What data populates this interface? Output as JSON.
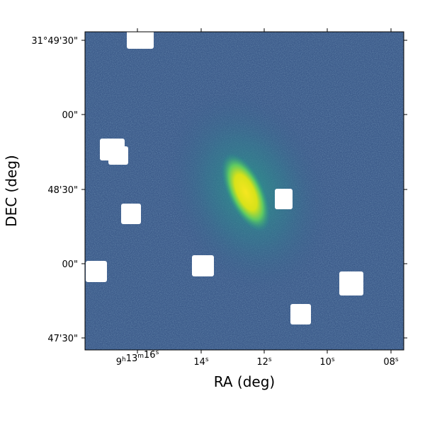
{
  "chart_data": {
    "type": "heatmap",
    "title": "",
    "xlabel": "RA (deg)",
    "ylabel": "DEC (deg)",
    "xtick_labels": [
      "9h13m16s",
      "14s",
      "12s",
      "10s",
      "08s"
    ],
    "ytick_labels": [
      "31°49'30\"",
      "00\"",
      "48'30\"",
      "00\"",
      "47'30\""
    ],
    "colormap": "viridis",
    "grid": false,
    "colors": {
      "background": "#3b5a8c",
      "galaxy_core": "#f2e51d",
      "mask": "#ffffff"
    }
  }
}
